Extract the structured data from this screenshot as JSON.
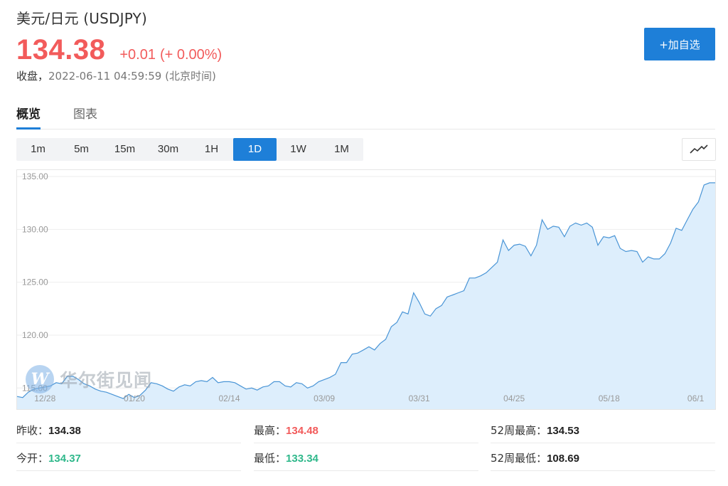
{
  "header": {
    "title": "美元/日元  (USDJPY)",
    "price": "134.38",
    "change": "+0.01",
    "change_pct": "(+ 0.00%)",
    "status_label": "收盘，",
    "status_time": "2022-06-11 04:59:59 (北京时间)",
    "add_button_label": "+加自选"
  },
  "tabs": [
    {
      "label": "概览",
      "active": true
    },
    {
      "label": "图表",
      "active": false
    }
  ],
  "periods": [
    "1m",
    "5m",
    "15m",
    "30m",
    "1H",
    "1D",
    "1W",
    "1M"
  ],
  "active_period": "1D",
  "chart_type_icon": "line-chart-icon",
  "watermark": "华尔街见闻",
  "colors": {
    "up": "#f25b5b",
    "down": "#2fb88b",
    "accent": "#1e7fd8",
    "line": "#4a95d6",
    "area": "#ddeefc"
  },
  "chart_data": {
    "type": "area",
    "ylim": [
      113.0,
      135.0
    ],
    "yticks": [
      "135.00",
      "130.00",
      "125.00",
      "120.00",
      "115.00"
    ],
    "xticks": [
      {
        "label": "12/28",
        "index": 5
      },
      {
        "label": "01/20",
        "index": 21
      },
      {
        "label": "02/14",
        "index": 38
      },
      {
        "label": "03/09",
        "index": 55
      },
      {
        "label": "03/31",
        "index": 72
      },
      {
        "label": "04/25",
        "index": 89
      },
      {
        "label": "05/18",
        "index": 106
      },
      {
        "label": "06/1",
        "index": 123
      }
    ],
    "values": [
      114.2,
      114.1,
      114.6,
      114.9,
      115.0,
      115.1,
      115.2,
      115.5,
      115.4,
      116.1,
      116.1,
      115.8,
      115.4,
      115.2,
      114.9,
      114.7,
      114.6,
      114.4,
      114.2,
      114.0,
      114.4,
      114.1,
      114.3,
      114.8,
      115.5,
      115.4,
      115.2,
      114.9,
      114.7,
      115.1,
      115.3,
      115.2,
      115.6,
      115.7,
      115.6,
      116.0,
      115.5,
      115.6,
      115.6,
      115.5,
      115.2,
      114.9,
      115.0,
      114.8,
      115.1,
      115.2,
      115.6,
      115.6,
      115.2,
      115.1,
      115.5,
      115.4,
      115.0,
      115.2,
      115.6,
      115.8,
      116.0,
      116.3,
      117.4,
      117.4,
      118.2,
      118.3,
      118.6,
      118.9,
      118.6,
      119.2,
      119.6,
      120.8,
      121.2,
      122.2,
      122.0,
      124.0,
      123.1,
      122.0,
      121.8,
      122.5,
      122.8,
      123.6,
      123.8,
      124.0,
      124.2,
      125.4,
      125.4,
      125.6,
      125.9,
      126.4,
      126.9,
      129.0,
      128.0,
      128.5,
      128.6,
      128.4,
      127.5,
      128.5,
      130.9,
      130.0,
      130.3,
      130.2,
      129.3,
      130.3,
      130.6,
      130.4,
      130.6,
      130.2,
      128.5,
      129.3,
      129.2,
      129.4,
      128.2,
      127.9,
      128.0,
      127.9,
      126.9,
      127.4,
      127.2,
      127.2,
      127.7,
      128.7,
      130.1,
      129.9,
      130.9,
      131.9,
      132.6,
      134.2,
      134.4,
      134.4
    ]
  },
  "stats": {
    "prev_close_label": "昨收：",
    "prev_close": "134.38",
    "high_label": "最高：",
    "high": "134.48",
    "high52_label": "52周最高：",
    "high52": "134.53",
    "open_label": "今开：",
    "open": "134.37",
    "low_label": "最低：",
    "low": "133.34",
    "low52_label": "52周最低：",
    "low52": "108.69"
  }
}
